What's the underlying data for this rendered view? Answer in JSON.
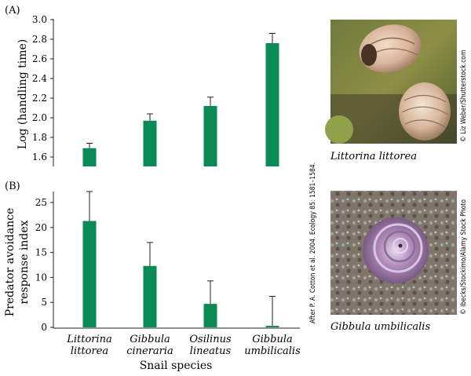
{
  "chart_data": [
    {
      "type": "bar",
      "panel": "(A)",
      "categories": [
        "Littorina littorea",
        "Gibbula cineraria",
        "Osilinus lineatus",
        "Gibbula umbilicalis"
      ],
      "values": [
        1.69,
        1.97,
        2.12,
        2.76
      ],
      "error_upper": [
        1.74,
        2.04,
        2.21,
        2.86
      ],
      "ylabel": "Log (handling time)",
      "ylim": [
        1.5,
        3.0
      ],
      "yticks": [
        "1.6",
        "1.8",
        "2.0",
        "2.2",
        "2.4",
        "2.6",
        "2.8",
        "3.0"
      ],
      "bar_color": "#0a8a55"
    },
    {
      "type": "bar",
      "panel": "(B)",
      "categories": [
        "Littorina littorea",
        "Gibbula cineraria",
        "Osilinus lineatus",
        "Gibbula umbilicalis"
      ],
      "category_lines": [
        [
          "Littorina",
          "littorea"
        ],
        [
          "Gibbula",
          "cineraria"
        ],
        [
          "Osilinus",
          "lineatus"
        ],
        [
          "Gibbula",
          "umbilicalis"
        ]
      ],
      "values": [
        21.3,
        12.3,
        4.7,
        0.3
      ],
      "error_upper": [
        27.2,
        17.0,
        9.3,
        6.2
      ],
      "ylabel_lines": [
        "Predator avoidance",
        "response index"
      ],
      "xlabel": "Snail species",
      "ylim": [
        0,
        28
      ],
      "yticks": [
        "0",
        "5",
        "10",
        "15",
        "20",
        "25"
      ],
      "bar_color": "#0a8a55"
    }
  ],
  "citation": "After P. A. Cotton et al. 2004. Ecology 85: 1581–1584.",
  "photos": [
    {
      "caption": "Littorina littorea",
      "credit": "© Liz Weber/Shutterstock.com"
    },
    {
      "caption": "Gibbula umbilicalis",
      "credit": "© Ibecks/Stockimo/Alamy Stock Photo"
    }
  ]
}
